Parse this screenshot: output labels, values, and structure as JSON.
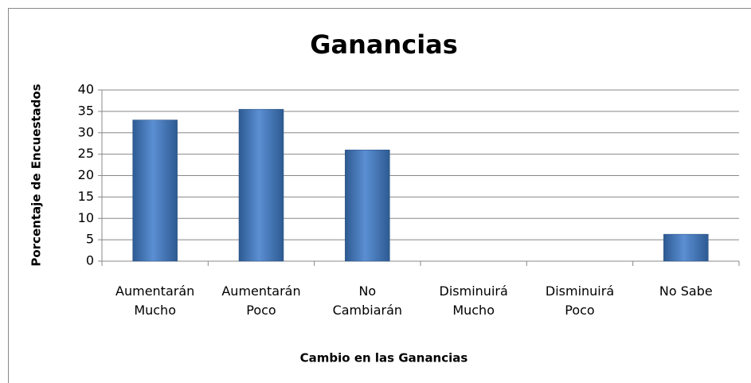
{
  "chart_data": {
    "type": "bar",
    "title": "Ganancias",
    "x_label": "Cambio en las Ganancias",
    "y_label": "Porcentaje de Encuestados",
    "categories": [
      "Aumentarán\nMucho",
      "Aumentarán\nPoco",
      "No\nCambiarán",
      "Disminuirá\nMucho",
      "Disminuirá\nPoco",
      "No Sabe"
    ],
    "values": [
      33,
      35.5,
      26,
      0,
      0,
      6.3
    ],
    "color": "#4f81bd",
    "ylim": [
      0,
      40
    ],
    "yticks": [
      0,
      5,
      10,
      15,
      20,
      25,
      30,
      35,
      40
    ],
    "grid": true
  }
}
